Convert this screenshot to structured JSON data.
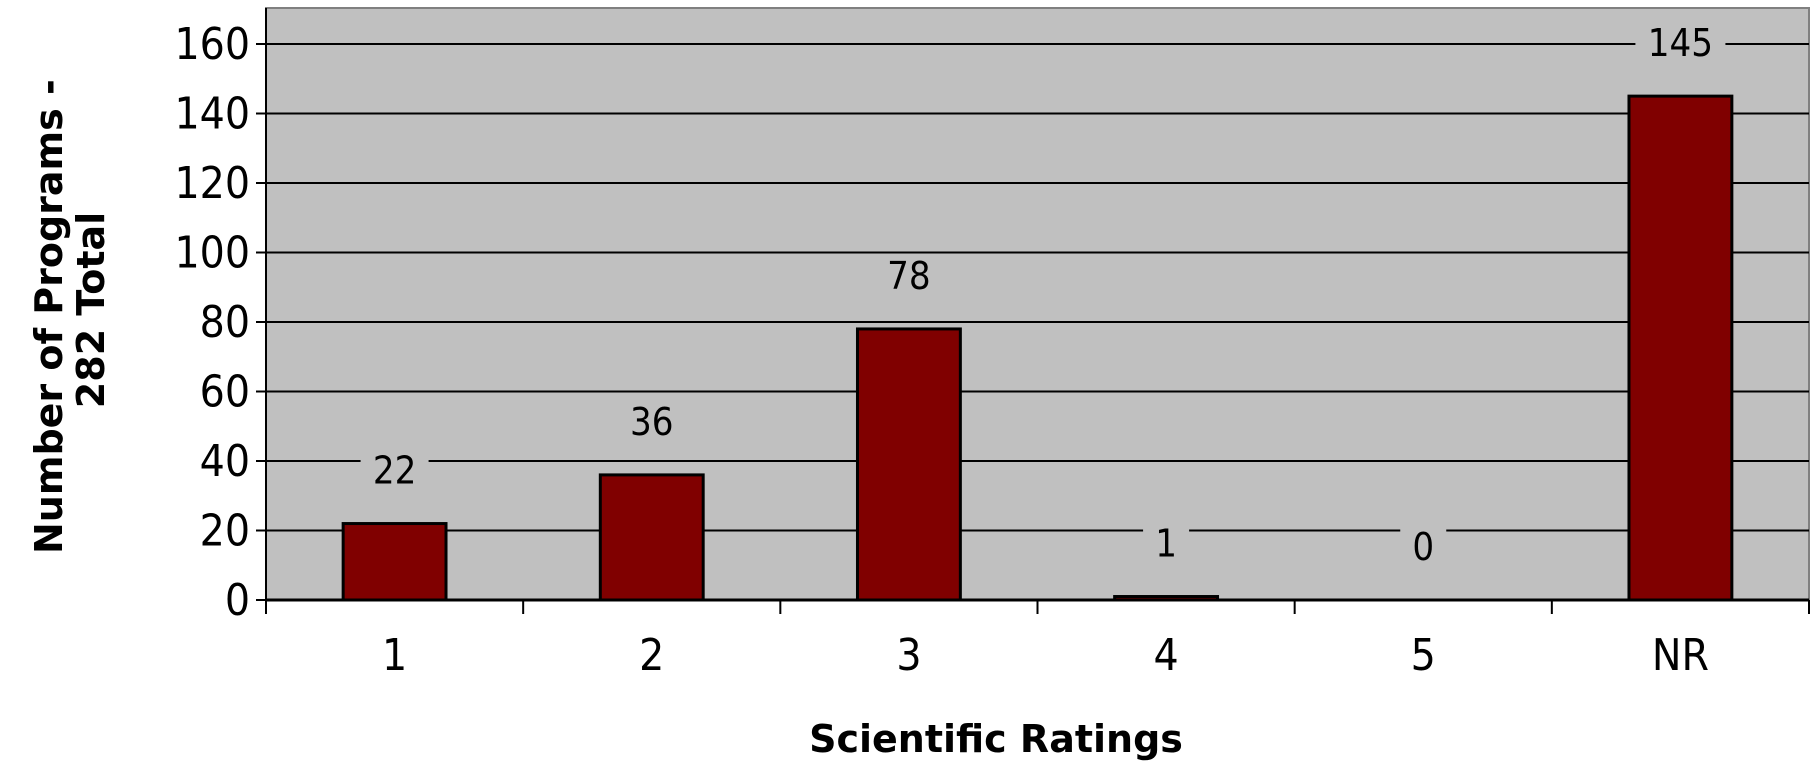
{
  "chart_data": {
    "type": "bar",
    "title": "",
    "xlabel": "Scientific Ratings",
    "ylabel_lines": [
      "Number of Programs -",
      "282 Total"
    ],
    "categories": [
      "1",
      "2",
      "3",
      "4",
      "5",
      "NR"
    ],
    "values": [
      22,
      36,
      78,
      1,
      0,
      145
    ],
    "data_labels": [
      "22",
      "36",
      "78",
      "1",
      "0",
      "145"
    ],
    "ylim": [
      0,
      170
    ],
    "yticks": [
      0,
      20,
      40,
      60,
      80,
      100,
      120,
      140,
      160
    ],
    "ytick_labels": [
      "0",
      "20",
      "40",
      "60",
      "80",
      "100",
      "120",
      "140",
      "160"
    ],
    "grid": true,
    "legend": "none",
    "colors": {
      "bar_fill": "#800000",
      "plot_background": "#c0c0c0",
      "gridline": "#000000"
    }
  }
}
